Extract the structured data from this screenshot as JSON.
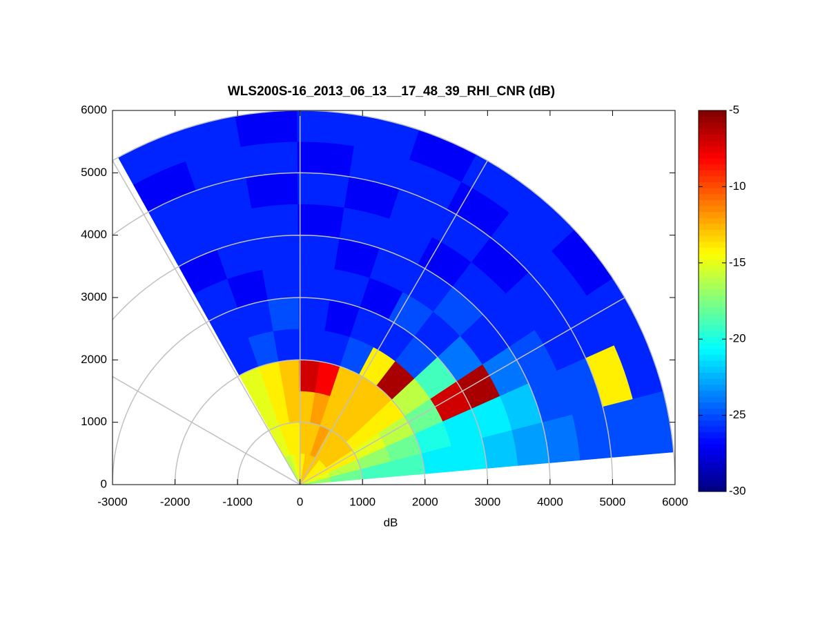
{
  "chart_data": {
    "type": "polar_heatmap",
    "title": "WLS200S-16_2013_06_13__17_48_39_RHI_CNR (dB)",
    "x_label": "dB",
    "xlim": [
      -3000,
      6000
    ],
    "xticks": [
      -3000,
      -2000,
      -1000,
      0,
      1000,
      2000,
      3000,
      4000,
      5000,
      6000
    ],
    "ylim": [
      0,
      6000
    ],
    "yticks": [
      0,
      1000,
      2000,
      3000,
      4000,
      5000,
      6000
    ],
    "r_grid": [
      1000,
      2000,
      3000,
      4000,
      5000,
      6000
    ],
    "theta_grid": [
      0,
      30,
      60,
      90,
      120,
      150
    ],
    "r_bins": [
      0,
      500,
      1000,
      1500,
      2000,
      2500,
      3000,
      3500,
      4000,
      4500,
      5000,
      5500,
      6000
    ],
    "theta_bins": [
      5,
      14.5,
      24,
      33.5,
      43,
      52.5,
      62,
      71.5,
      81,
      90.5,
      100,
      109.5,
      119
    ],
    "z": [
      [
        -17,
        -15,
        -14,
        -14,
        -14,
        -13,
        -13,
        -13,
        -14,
        -14,
        -15,
        -16
      ],
      [
        -18,
        -16,
        -14,
        -13,
        -13,
        -13,
        -12,
        -13,
        -13,
        -14,
        -14,
        -15
      ],
      [
        -19,
        -17,
        -15,
        -14,
        -13,
        -13,
        -13,
        -12,
        -13,
        -13,
        -14,
        -15
      ],
      [
        -19,
        -18,
        -16,
        -14,
        -13,
        -13,
        -13,
        -8,
        -7,
        -13,
        -14,
        -15
      ],
      [
        -21,
        -20,
        -18,
        -16,
        -6,
        -14,
        -25,
        -26,
        -26,
        -26,
        -25,
        -26
      ],
      [
        -21,
        -21,
        -7,
        -19,
        -25,
        -26,
        -26,
        -27,
        -26,
        -25,
        -26,
        -26
      ],
      [
        -22,
        -21,
        -6,
        -24,
        -26,
        -25,
        -27,
        -26,
        -26,
        -26,
        -27,
        -26
      ],
      [
        -23,
        -22,
        -24,
        -26,
        -25,
        -26,
        -26,
        -27,
        -26,
        -26,
        -26,
        -27
      ],
      [
        -24,
        -25,
        -25,
        -26,
        -26,
        -27,
        -26,
        -26,
        -27,
        -26,
        -26,
        -26
      ],
      [
        -25,
        -25,
        -26,
        -26,
        -27,
        -26,
        -26,
        -27,
        -26,
        -27,
        -26,
        -26
      ],
      [
        -25,
        -14,
        -26,
        -26,
        -26,
        -27,
        -26,
        -26,
        -27,
        -26,
        -26,
        -27
      ],
      [
        -25,
        -26,
        -26,
        -27,
        -26,
        -26,
        -27,
        -26,
        -26,
        -27,
        -26,
        -26
      ]
    ],
    "clim": [
      -30,
      -5
    ],
    "cticks": [
      -30,
      -25,
      -20,
      -15,
      -10,
      -5
    ],
    "colormap": "jet",
    "grid_color": "#c0c0c0"
  }
}
